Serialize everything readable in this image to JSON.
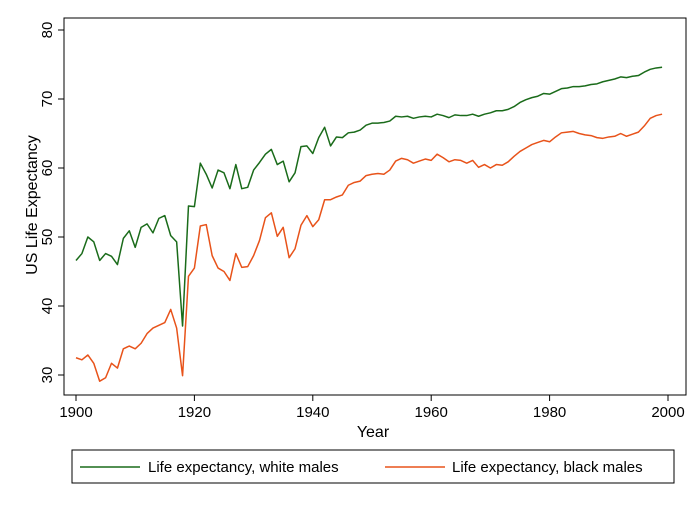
{
  "chart_data": {
    "type": "line",
    "title": "",
    "xlabel": "Year",
    "ylabel": "US Life Expectancy",
    "xlim": [
      1900,
      2000
    ],
    "ylim": [
      28,
      82
    ],
    "xticks": [
      1900,
      1920,
      1940,
      1960,
      1980,
      2000
    ],
    "yticks": [
      30,
      40,
      50,
      60,
      70,
      80
    ],
    "grid": false,
    "legend_position": "bottom",
    "series": [
      {
        "name": "Life expectancy, white males",
        "color": "#1a6b1a",
        "x": [
          1900,
          1901,
          1902,
          1903,
          1904,
          1905,
          1906,
          1907,
          1908,
          1909,
          1910,
          1911,
          1912,
          1913,
          1914,
          1915,
          1916,
          1917,
          1918,
          1919,
          1920,
          1921,
          1922,
          1923,
          1924,
          1925,
          1926,
          1927,
          1928,
          1929,
          1930,
          1931,
          1932,
          1933,
          1934,
          1935,
          1936,
          1937,
          1938,
          1939,
          1940,
          1941,
          1942,
          1943,
          1944,
          1945,
          1946,
          1947,
          1948,
          1949,
          1950,
          1951,
          1952,
          1953,
          1954,
          1955,
          1956,
          1957,
          1958,
          1959,
          1960,
          1961,
          1962,
          1963,
          1964,
          1965,
          1966,
          1967,
          1968,
          1969,
          1970,
          1971,
          1972,
          1973,
          1974,
          1975,
          1976,
          1977,
          1978,
          1979,
          1980,
          1981,
          1982,
          1983,
          1984,
          1985,
          1986,
          1987,
          1988,
          1989,
          1990,
          1991,
          1992,
          1993,
          1994,
          1995,
          1996,
          1997,
          1998,
          1999
        ],
        "values": [
          46.6,
          47.6,
          50.0,
          49.3,
          46.6,
          47.6,
          47.2,
          46.0,
          49.8,
          50.9,
          48.5,
          51.4,
          51.9,
          50.6,
          52.7,
          53.1,
          50.2,
          49.3,
          37.1,
          54.5,
          54.4,
          60.7,
          59.1,
          57.1,
          59.7,
          59.3,
          57.0,
          60.5,
          57.0,
          57.2,
          59.7,
          60.8,
          62.0,
          62.7,
          60.5,
          61.0,
          58.0,
          59.3,
          63.1,
          63.2,
          62.1,
          64.4,
          65.9,
          63.2,
          64.5,
          64.4,
          65.1,
          65.2,
          65.5,
          66.2,
          66.5,
          66.5,
          66.6,
          66.8,
          67.5,
          67.4,
          67.5,
          67.2,
          67.4,
          67.5,
          67.4,
          67.8,
          67.6,
          67.3,
          67.7,
          67.6,
          67.6,
          67.8,
          67.5,
          67.8,
          68.0,
          68.3,
          68.3,
          68.5,
          68.9,
          69.5,
          69.9,
          70.2,
          70.4,
          70.8,
          70.7,
          71.1,
          71.5,
          71.6,
          71.8,
          71.8,
          71.9,
          72.1,
          72.2,
          72.5,
          72.7,
          72.9,
          73.2,
          73.1,
          73.3,
          73.4,
          73.9,
          74.3,
          74.5,
          74.6
        ]
      },
      {
        "name": "Life expectancy, black males",
        "color": "#e8531a",
        "x": [
          1900,
          1901,
          1902,
          1903,
          1904,
          1905,
          1906,
          1907,
          1908,
          1909,
          1910,
          1911,
          1912,
          1913,
          1914,
          1915,
          1916,
          1917,
          1918,
          1919,
          1920,
          1921,
          1922,
          1923,
          1924,
          1925,
          1926,
          1927,
          1928,
          1929,
          1930,
          1931,
          1932,
          1933,
          1934,
          1935,
          1936,
          1937,
          1938,
          1939,
          1940,
          1941,
          1942,
          1943,
          1944,
          1945,
          1946,
          1947,
          1948,
          1949,
          1950,
          1951,
          1952,
          1953,
          1954,
          1955,
          1956,
          1957,
          1958,
          1959,
          1960,
          1961,
          1962,
          1963,
          1964,
          1965,
          1966,
          1967,
          1968,
          1969,
          1970,
          1971,
          1972,
          1973,
          1974,
          1975,
          1976,
          1977,
          1978,
          1979,
          1980,
          1981,
          1982,
          1983,
          1984,
          1985,
          1986,
          1987,
          1988,
          1989,
          1990,
          1991,
          1992,
          1993,
          1994,
          1995,
          1996,
          1997,
          1998,
          1999
        ],
        "values": [
          32.5,
          32.2,
          32.9,
          31.7,
          29.1,
          29.6,
          31.7,
          31.0,
          33.8,
          34.2,
          33.8,
          34.6,
          36.0,
          36.8,
          37.2,
          37.6,
          39.5,
          36.8,
          29.9,
          44.3,
          45.5,
          51.6,
          51.8,
          47.3,
          45.5,
          45.0,
          43.7,
          47.6,
          45.6,
          45.7,
          47.3,
          49.5,
          52.8,
          53.5,
          50.1,
          51.4,
          47.0,
          48.3,
          51.7,
          53.1,
          51.5,
          52.5,
          55.4,
          55.4,
          55.8,
          56.1,
          57.5,
          57.9,
          58.1,
          58.9,
          59.1,
          59.2,
          59.1,
          59.7,
          61.0,
          61.4,
          61.2,
          60.7,
          61.0,
          61.3,
          61.1,
          62.0,
          61.5,
          60.9,
          61.2,
          61.1,
          60.7,
          61.1,
          60.1,
          60.5,
          60.0,
          60.5,
          60.4,
          60.9,
          61.7,
          62.4,
          62.9,
          63.4,
          63.7,
          64.0,
          63.8,
          64.5,
          65.1,
          65.2,
          65.3,
          65.0,
          64.8,
          64.7,
          64.4,
          64.3,
          64.5,
          64.6,
          65.0,
          64.6,
          64.9,
          65.2,
          66.1,
          67.2,
          67.6,
          67.8
        ]
      }
    ]
  }
}
